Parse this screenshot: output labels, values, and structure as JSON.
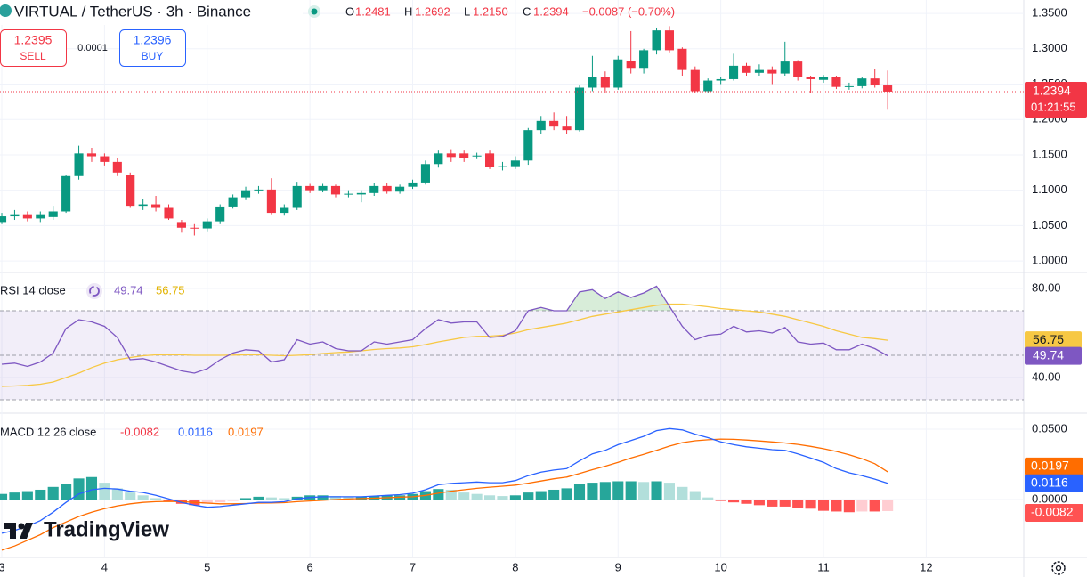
{
  "chart_data": {
    "type": "candlestick",
    "title": "VIRTUAL / TetherUS · 3h · Binance",
    "legend": {
      "o": "O",
      "open": "1.2481",
      "h": "H",
      "high": "1.2692",
      "l": "L",
      "low": "1.2150",
      "c": "C",
      "close": "1.2394",
      "change": "−0.0087 (−0.70%)"
    },
    "sell": {
      "price": "1.2395",
      "label": "SELL"
    },
    "spread": "0.0001",
    "buy": {
      "price": "1.2396",
      "label": "BUY"
    },
    "countdown": "01:21:55",
    "up_color": "#089981",
    "down_color": "#f23645",
    "grid": true,
    "open": [
      1.055,
      1.063,
      1.066,
      1.06,
      1.062,
      1.07,
      1.12,
      1.152,
      1.148,
      1.14,
      1.122,
      1.078,
      1.08,
      1.075,
      1.055,
      1.047,
      1.046,
      1.056,
      1.077,
      1.09,
      1.1,
      1.101,
      1.068,
      1.075,
      1.106,
      1.1,
      1.106,
      1.094,
      1.094,
      1.096,
      1.106,
      1.098,
      1.105,
      1.111,
      1.137,
      1.152,
      1.152,
      1.148,
      1.152,
      1.133,
      1.134,
      1.142,
      1.185,
      1.198,
      1.19,
      1.185,
      1.245,
      1.26,
      1.245,
      1.283,
      1.273,
      1.298,
      1.326,
      1.3,
      1.27,
      1.24,
      1.255,
      1.257,
      1.276,
      1.266,
      1.27,
      1.265,
      1.282,
      1.26,
      1.256,
      1.26,
      1.246,
      1.247,
      1.258,
      1.2481
    ],
    "high": [
      1.068,
      1.072,
      1.07,
      1.07,
      1.078,
      1.122,
      1.163,
      1.16,
      1.152,
      1.145,
      1.125,
      1.088,
      1.092,
      1.08,
      1.058,
      1.052,
      1.06,
      1.08,
      1.094,
      1.105,
      1.106,
      1.117,
      1.08,
      1.112,
      1.109,
      1.109,
      1.108,
      1.1,
      1.1,
      1.11,
      1.11,
      1.108,
      1.115,
      1.142,
      1.156,
      1.158,
      1.156,
      1.153,
      1.156,
      1.14,
      1.148,
      1.188,
      1.205,
      1.21,
      1.205,
      1.248,
      1.29,
      1.268,
      1.29,
      1.325,
      1.3,
      1.33,
      1.332,
      1.302,
      1.275,
      1.258,
      1.26,
      1.293,
      1.28,
      1.278,
      1.275,
      1.31,
      1.284,
      1.262,
      1.263,
      1.262,
      1.252,
      1.26,
      1.272,
      1.2692
    ],
    "low": [
      1.052,
      1.058,
      1.056,
      1.055,
      1.058,
      1.068,
      1.115,
      1.14,
      1.135,
      1.12,
      1.075,
      1.072,
      1.07,
      1.058,
      1.04,
      1.036,
      1.042,
      1.052,
      1.074,
      1.086,
      1.095,
      1.066,
      1.064,
      1.072,
      1.096,
      1.097,
      1.09,
      1.09,
      1.083,
      1.092,
      1.095,
      1.095,
      1.102,
      1.108,
      1.132,
      1.14,
      1.14,
      1.144,
      1.13,
      1.128,
      1.13,
      1.136,
      1.18,
      1.185,
      1.18,
      1.183,
      1.24,
      1.238,
      1.242,
      1.265,
      1.265,
      1.292,
      1.295,
      1.262,
      1.237,
      1.238,
      1.25,
      1.255,
      1.262,
      1.262,
      1.25,
      1.262,
      1.255,
      1.238,
      1.252,
      1.243,
      1.242,
      1.244,
      1.245,
      1.215
    ],
    "close": [
      1.063,
      1.066,
      1.06,
      1.066,
      1.07,
      1.12,
      1.152,
      1.148,
      1.14,
      1.125,
      1.078,
      1.08,
      1.075,
      1.06,
      1.047,
      1.046,
      1.056,
      1.077,
      1.09,
      1.1,
      1.101,
      1.068,
      1.075,
      1.106,
      1.1,
      1.106,
      1.094,
      1.095,
      1.096,
      1.106,
      1.098,
      1.105,
      1.111,
      1.137,
      1.152,
      1.147,
      1.146,
      1.149,
      1.133,
      1.134,
      1.142,
      1.185,
      1.198,
      1.19,
      1.185,
      1.245,
      1.26,
      1.245,
      1.285,
      1.273,
      1.298,
      1.326,
      1.298,
      1.27,
      1.24,
      1.255,
      1.257,
      1.276,
      1.266,
      1.27,
      1.265,
      1.282,
      1.26,
      1.257,
      1.26,
      1.246,
      1.247,
      1.258,
      1.2481,
      1.2394
    ],
    "xlim": [
      -0.14,
      79.6
    ],
    "xticks": [
      {
        "value": 0,
        "label": "3"
      },
      {
        "value": 8,
        "label": "4"
      },
      {
        "value": 16,
        "label": "5"
      },
      {
        "value": 24,
        "label": "6"
      },
      {
        "value": 32,
        "label": "7"
      },
      {
        "value": 40,
        "label": "8"
      },
      {
        "value": 48,
        "label": "9"
      },
      {
        "value": 56,
        "label": "10"
      },
      {
        "value": 64,
        "label": "11"
      },
      {
        "value": 72,
        "label": "12"
      }
    ],
    "ylim": [
      0.985,
      1.369
    ],
    "yticks": [
      {
        "value": 1.0,
        "label": "1.0000"
      },
      {
        "value": 1.05,
        "label": "1.0500"
      },
      {
        "value": 1.1,
        "label": "1.1000"
      },
      {
        "value": 1.15,
        "label": "1.1500"
      },
      {
        "value": 1.2,
        "label": "1.2000"
      },
      {
        "value": 1.25,
        "label": "1.2500"
      },
      {
        "value": 1.3,
        "label": "1.3000"
      },
      {
        "value": 1.35,
        "label": "1.3500"
      }
    ],
    "rsi": {
      "title": "RSI 14 close",
      "value_label": "49.74",
      "ma_label": "56.75",
      "color": "#7e57c2",
      "ma_color": "#f7c844",
      "ylim": [
        24.4,
        86.8
      ],
      "yticks": [
        {
          "value": 40,
          "label": "40.00"
        },
        {
          "value": 80,
          "label": "80.00"
        }
      ],
      "bands": [
        30,
        50,
        70
      ],
      "values": [
        46,
        46.5,
        45,
        47,
        51,
        62,
        66,
        65,
        63,
        58,
        48,
        48.5,
        47,
        45,
        43,
        42,
        44,
        48,
        51,
        52.5,
        52,
        47,
        48,
        57,
        55,
        56,
        53,
        52,
        52,
        56,
        55,
        56,
        57,
        62,
        66,
        64.5,
        65,
        65,
        58,
        58.5,
        61,
        70,
        71.5,
        70,
        70,
        78.5,
        79.5,
        75.5,
        78.5,
        76,
        78,
        81,
        72,
        63,
        57,
        59,
        59.5,
        63,
        60.5,
        61,
        60,
        62.5,
        56,
        55,
        55.5,
        52.5,
        52.5,
        55,
        53,
        49.74
      ],
      "ma": [
        36,
        36.2,
        36.5,
        37,
        38,
        40,
        42,
        44.5,
        46.5,
        48,
        49,
        49.8,
        50.2,
        50.3,
        50.2,
        50,
        50,
        50,
        50.1,
        50.2,
        50.2,
        50,
        49.8,
        50,
        50.3,
        50.8,
        51.2,
        51.5,
        52,
        52.6,
        53,
        53.3,
        53.8,
        54.8,
        56,
        57,
        58,
        58.5,
        58.6,
        59,
        60,
        61.5,
        62.5,
        63.5,
        64.5,
        66,
        67.5,
        68.5,
        69.5,
        70.5,
        71.5,
        72.5,
        73,
        73,
        72.5,
        71.8,
        71,
        70.5,
        70,
        69.5,
        68.5,
        67.5,
        66,
        64.5,
        63,
        61,
        59.5,
        58,
        57.5,
        56.75
      ]
    },
    "macd": {
      "title": "MACD 12 26 close",
      "hist_label": "-0.0082",
      "macd_label": "0.0116",
      "signal_label": "0.0197",
      "macd_color": "#2962ff",
      "signal_color": "#ff6d00",
      "hist_colors": [
        "#26a69a",
        "#b2dfdb",
        "#ff5252",
        "#ffcdd2"
      ],
      "ylim": [
        -0.0405,
        0.0608
      ],
      "yticks": [
        {
          "value": 0,
          "label": "0.0000"
        },
        {
          "value": 0.05,
          "label": "0.0500"
        }
      ],
      "macd": [
        -0.024,
        -0.022,
        -0.019,
        -0.015,
        -0.009,
        -0.002,
        0.004,
        0.007,
        0.008,
        0.0075,
        0.006,
        0.005,
        0.003,
        0.0005,
        -0.002,
        -0.004,
        -0.0055,
        -0.005,
        -0.004,
        -0.003,
        -0.002,
        -0.002,
        -0.0015,
        0.0005,
        0.0015,
        0.002,
        0.002,
        0.002,
        0.002,
        0.0025,
        0.003,
        0.0035,
        0.0045,
        0.007,
        0.0105,
        0.0115,
        0.012,
        0.0125,
        0.012,
        0.012,
        0.0135,
        0.017,
        0.0195,
        0.021,
        0.022,
        0.0275,
        0.0325,
        0.035,
        0.039,
        0.042,
        0.045,
        0.049,
        0.0505,
        0.0495,
        0.0465,
        0.044,
        0.041,
        0.039,
        0.0375,
        0.0365,
        0.0355,
        0.035,
        0.0325,
        0.0295,
        0.0265,
        0.022,
        0.019,
        0.017,
        0.0145,
        0.0116
      ],
      "signal": [
        -0.036,
        -0.033,
        -0.029,
        -0.025,
        -0.02,
        -0.016,
        -0.012,
        -0.009,
        -0.0065,
        -0.0045,
        -0.003,
        -0.002,
        -0.0015,
        -0.0013,
        -0.0015,
        -0.002,
        -0.0025,
        -0.003,
        -0.003,
        -0.0028,
        -0.0025,
        -0.0024,
        -0.0022,
        -0.0015,
        -0.001,
        -0.0005,
        0,
        0.0004,
        0.0007,
        0.001,
        0.0013,
        0.0017,
        0.002,
        0.003,
        0.0045,
        0.006,
        0.007,
        0.008,
        0.0088,
        0.0095,
        0.0103,
        0.0117,
        0.0132,
        0.0148,
        0.016,
        0.0185,
        0.0212,
        0.0237,
        0.0265,
        0.0295,
        0.0322,
        0.035,
        0.038,
        0.0405,
        0.0418,
        0.0425,
        0.043,
        0.0428,
        0.0423,
        0.0417,
        0.041,
        0.0402,
        0.0392,
        0.0378,
        0.0362,
        0.0342,
        0.0318,
        0.029,
        0.0255,
        0.0197
      ],
      "histogram": [
        0.004,
        0.005,
        0.006,
        0.007,
        0.009,
        0.011,
        0.015,
        0.016,
        0.012,
        0.008,
        0.005,
        0.003,
        0.001,
        -0.001,
        -0.003,
        -0.004,
        -0.003,
        -0.002,
        -0.001,
        0.001,
        0.002,
        0.0015,
        0.001,
        0.002,
        0.003,
        0.003,
        0.0025,
        0.002,
        0.002,
        0.0025,
        0.003,
        0.003,
        0.004,
        0.006,
        0.0075,
        0.007,
        0.005,
        0.004,
        0.003,
        0.0025,
        0.003,
        0.005,
        0.006,
        0.007,
        0.008,
        0.011,
        0.012,
        0.0125,
        0.013,
        0.013,
        0.0125,
        0.013,
        0.012,
        0.009,
        0.006,
        0.0015,
        -0.001,
        -0.002,
        -0.003,
        -0.004,
        -0.005,
        -0.005,
        -0.006,
        -0.0065,
        -0.008,
        -0.0085,
        -0.009,
        -0.0085,
        -0.0085,
        -0.0082
      ]
    },
    "brand": "TradingView"
  }
}
